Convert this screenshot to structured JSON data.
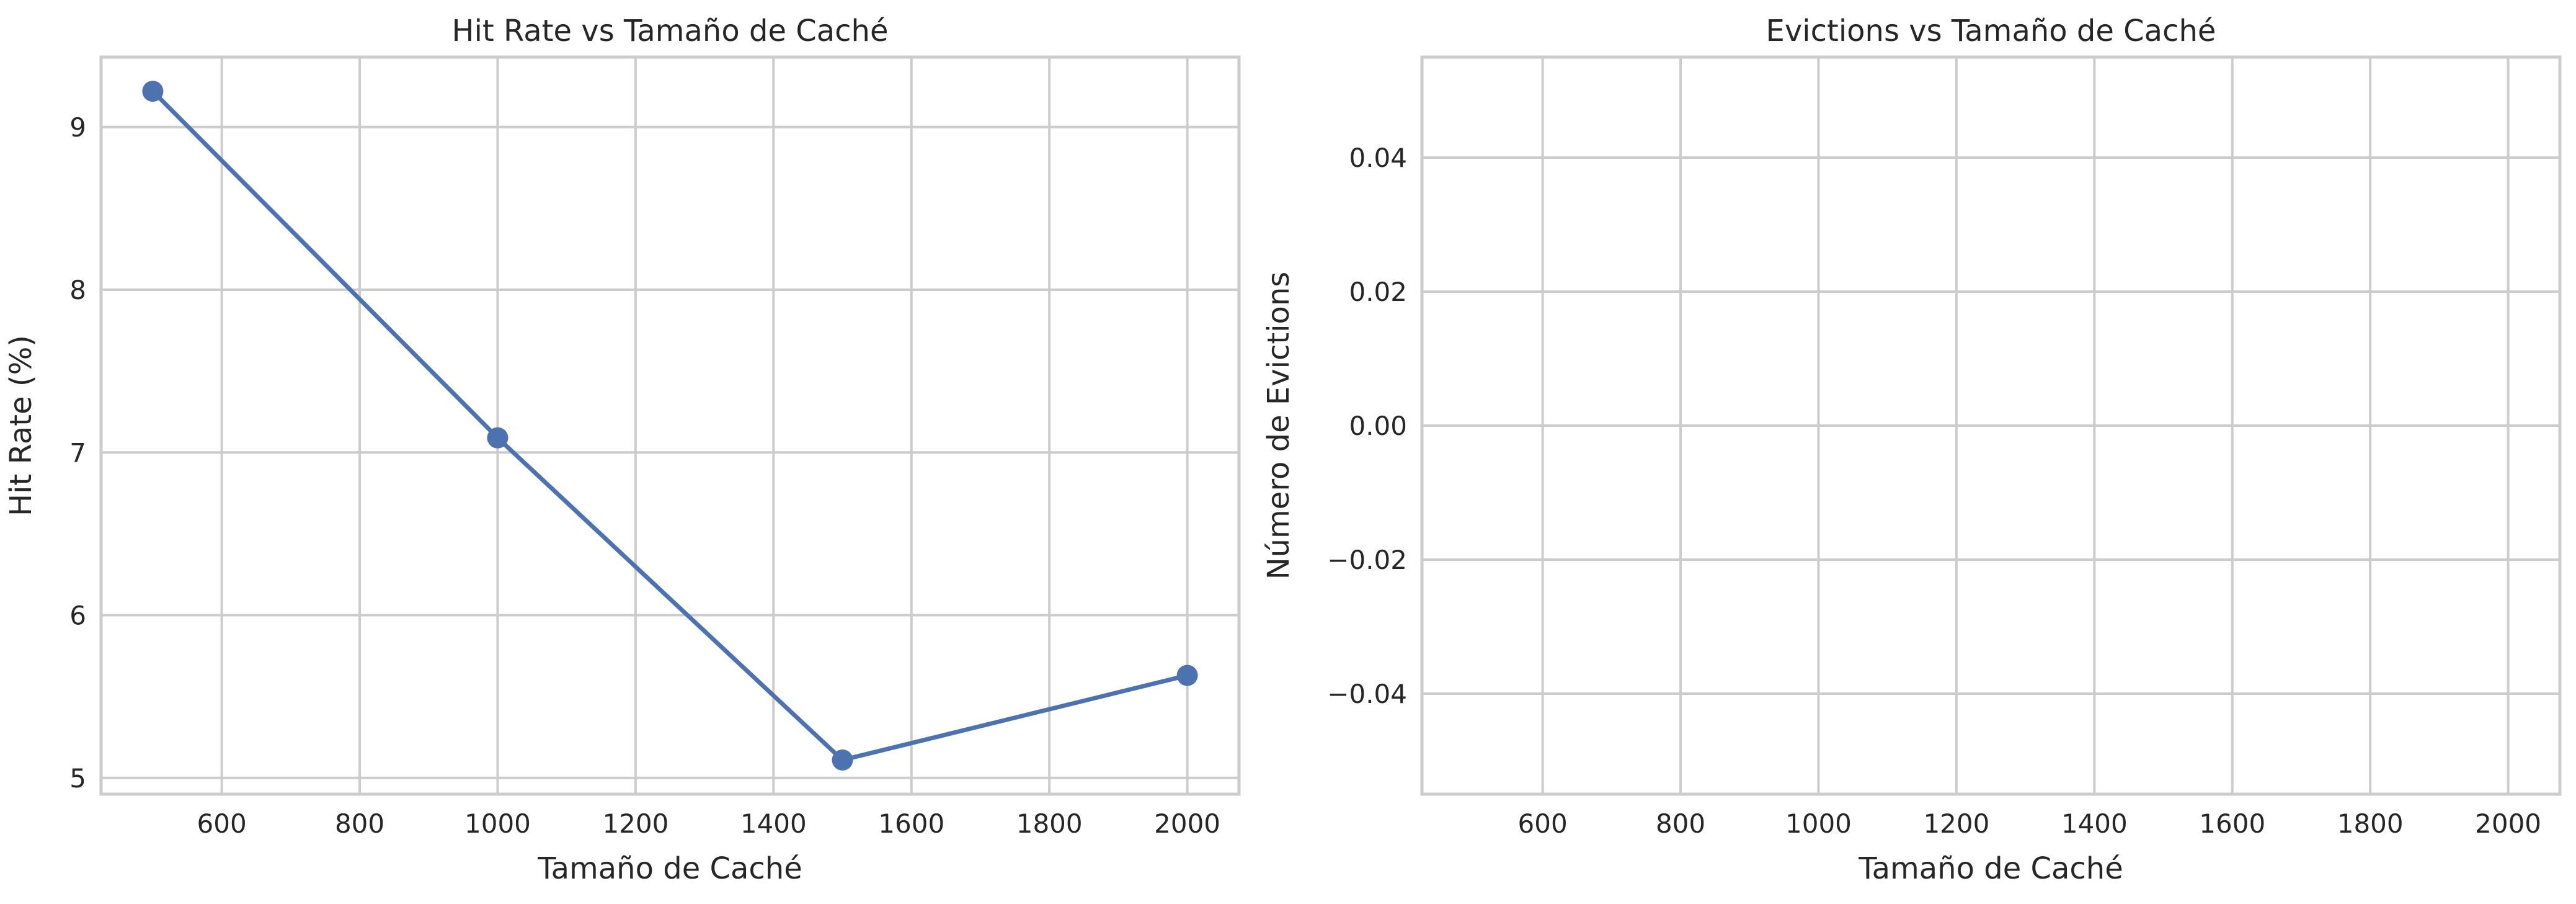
{
  "chart_data": [
    {
      "type": "line",
      "title": "Hit Rate vs Tamaño de Caché",
      "xlabel": "Tamaño de Caché",
      "ylabel": "Hit Rate (%)",
      "xlim": [
        425,
        2075
      ],
      "ylim": [
        4.9,
        9.43
      ],
      "xticks": [
        600,
        800,
        1000,
        1200,
        1400,
        1600,
        1800,
        2000
      ],
      "yticks": [
        5,
        6,
        7,
        8,
        9
      ],
      "xtick_labels": [
        "600",
        "800",
        "1000",
        "1200",
        "1400",
        "1600",
        "1800",
        "2000"
      ],
      "ytick_labels": [
        "5",
        "6",
        "7",
        "8",
        "9"
      ],
      "grid": true,
      "line_color": "#4c72b0",
      "series": [
        {
          "x": [
            500,
            1000,
            1500,
            2000
          ],
          "values": [
            9.22,
            7.09,
            5.11,
            5.63
          ]
        }
      ]
    },
    {
      "type": "line",
      "title": "Evictions vs Tamaño de Caché",
      "xlabel": "Tamaño de Caché",
      "ylabel": "Número de Evictions",
      "xlim": [
        425,
        2075
      ],
      "ylim": [
        -0.055,
        0.055
      ],
      "xticks": [
        600,
        800,
        1000,
        1200,
        1400,
        1600,
        1800,
        2000
      ],
      "yticks": [
        -0.04,
        -0.02,
        0.0,
        0.02,
        0.04
      ],
      "xtick_labels": [
        "600",
        "800",
        "1000",
        "1200",
        "1400",
        "1600",
        "1800",
        "2000"
      ],
      "ytick_labels": [
        "−0.04",
        "−0.02",
        "0.00",
        "0.02",
        "0.04"
      ],
      "grid": true,
      "line_color": "#4c72b0",
      "series": []
    }
  ]
}
